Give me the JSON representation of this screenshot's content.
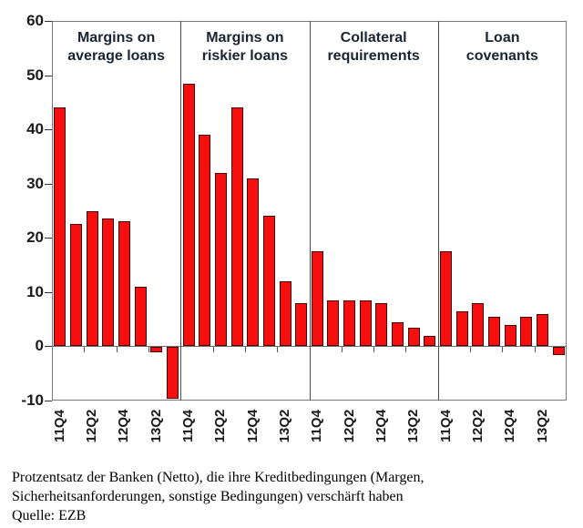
{
  "chart_data": {
    "type": "bar",
    "title": "",
    "ylabel": "",
    "xlabel": "",
    "ylim": [
      -10,
      60
    ],
    "yticks": [
      60,
      50,
      40,
      30,
      20,
      10,
      0,
      -10
    ],
    "grid": "off",
    "legend": "none",
    "x_tick_labels": [
      "11Q4",
      "12Q2",
      "12Q4",
      "13Q2"
    ],
    "x_tick_label_note": "labels sit under bars 1,3,5,7 of the 8 bars in each panel",
    "bar_color": "#f50f0f",
    "bar_border_color": "#4a0000",
    "panel_title_color": "#1a2433",
    "panels": [
      {
        "title_line1": "Margins on",
        "title_line2": "average loans",
        "values": [
          44,
          22.5,
          25,
          23.5,
          23,
          11,
          -1,
          -9.5
        ]
      },
      {
        "title_line1": "Margins on",
        "title_line2": "riskier loans",
        "values": [
          48.5,
          39,
          32,
          44,
          31,
          24,
          12,
          8
        ]
      },
      {
        "title_line1": "Collateral",
        "title_line2": "requirements",
        "values": [
          17.5,
          8.5,
          8.5,
          8.5,
          8,
          4.5,
          3.5,
          2
        ]
      },
      {
        "title_line1": "Loan",
        "title_line2": "covenants",
        "values": [
          17.5,
          6.5,
          8,
          5.5,
          4,
          5.5,
          6,
          -1.5
        ]
      }
    ]
  },
  "caption": {
    "line1": "Protzentsatz der Banken (Netto), die ihre Kreditbedingungen (Margen,",
    "line2": "Sicherheitsanforderungen, sonstige Bedingungen) verschärft haben",
    "source": "Quelle: EZB"
  }
}
